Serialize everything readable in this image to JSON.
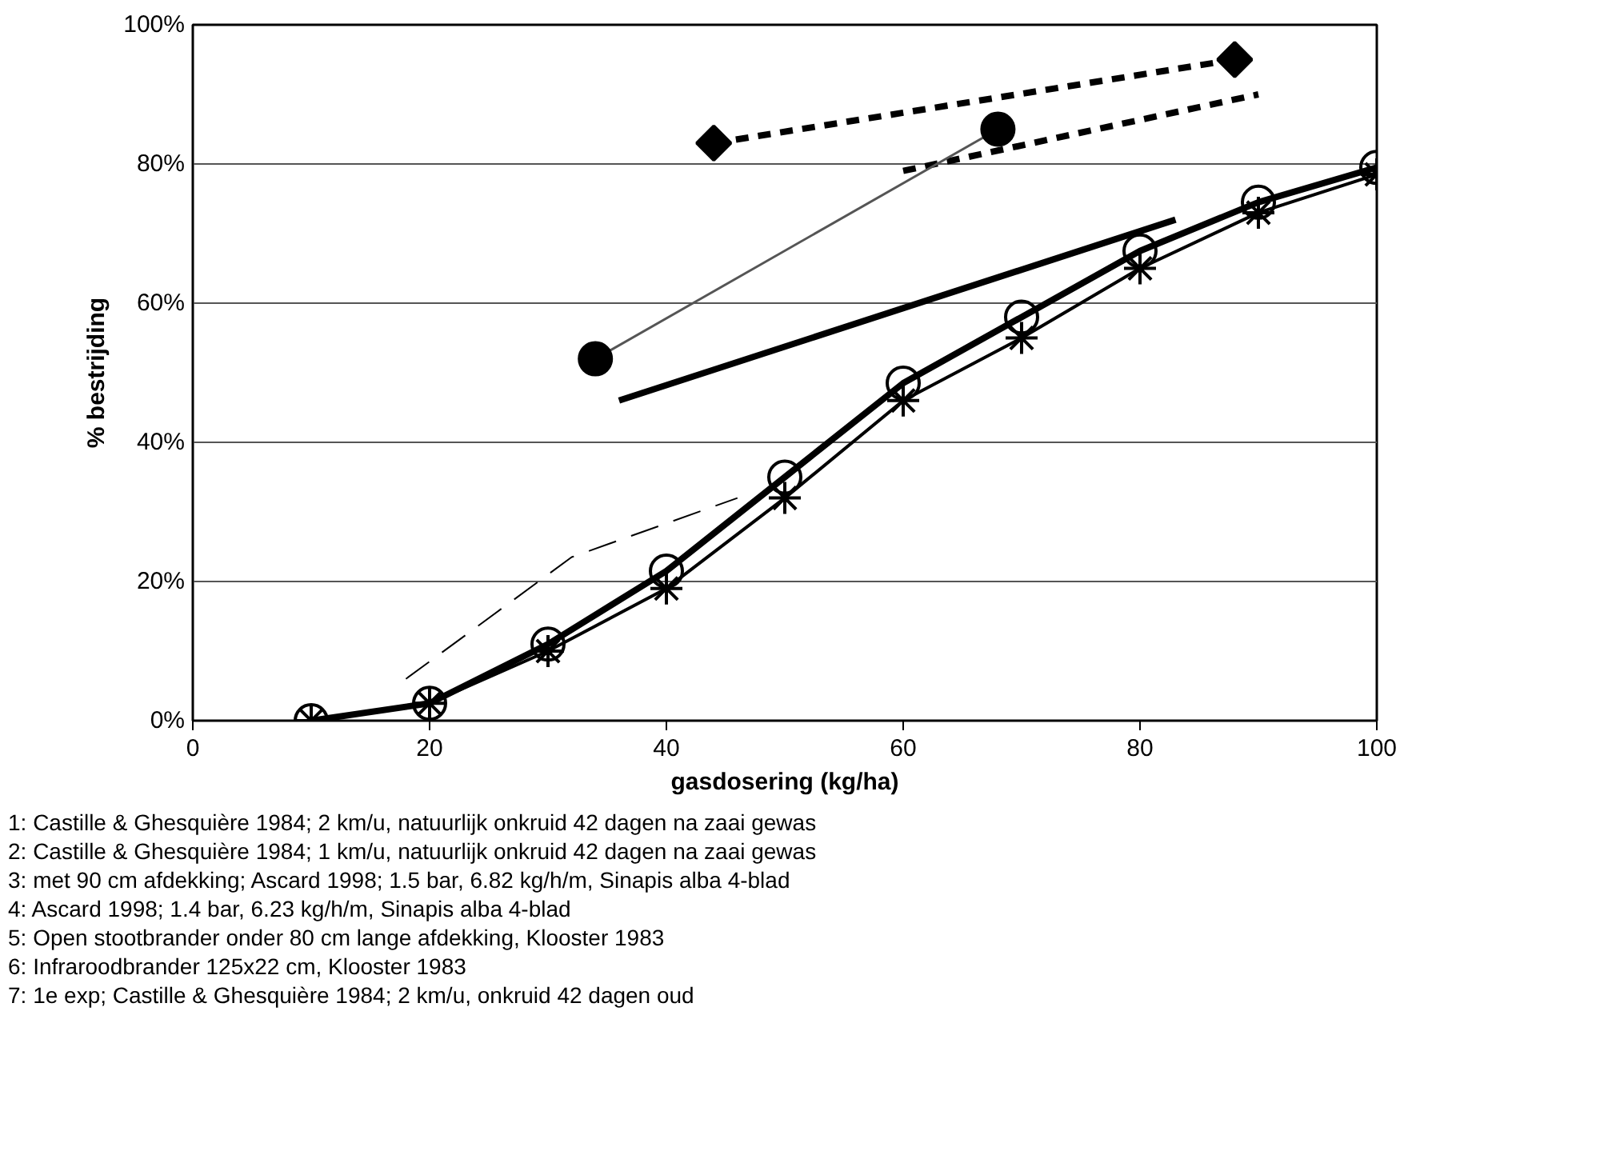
{
  "chart_data": {
    "type": "line",
    "xlabel": "gasdosering (kg/ha)",
    "ylabel": "% bestrijding",
    "xlim": [
      0,
      100
    ],
    "xticks": [
      0,
      20,
      40,
      60,
      80,
      100
    ],
    "ylim": [
      0,
      100
    ],
    "yticks": [
      {
        "value": 0,
        "label": "0%"
      },
      {
        "value": 20,
        "label": "20%"
      },
      {
        "value": 40,
        "label": "40%"
      },
      {
        "value": 60,
        "label": "60%"
      },
      {
        "value": 80,
        "label": "80%"
      },
      {
        "value": 100,
        "label": "100%"
      }
    ],
    "grid": "y",
    "series": [
      {
        "color": "#000000",
        "x": [
          44,
          88
        ],
        "values": [
          83,
          95
        ],
        "marker": "diamond",
        "line_style": "dashed"
      },
      {
        "color": "#000000",
        "x": [
          60,
          90
        ],
        "values": [
          79,
          90
        ],
        "marker": "none",
        "line_style": "dashed"
      },
      {
        "color": "#555555",
        "x": [
          34,
          68
        ],
        "values": [
          52,
          85
        ],
        "marker": "circle",
        "line_style": "solid"
      },
      {
        "color": "#000000",
        "x": [
          36,
          83
        ],
        "values": [
          46,
          72
        ],
        "marker": "none",
        "line_style": "solid"
      },
      {
        "color": "#000000",
        "x": [
          10,
          20,
          30,
          40,
          50,
          60,
          70,
          80,
          90,
          100
        ],
        "values": [
          0,
          2.5,
          11,
          21.5,
          35,
          48.5,
          58,
          67.5,
          74.5,
          79.5
        ],
        "marker": "circle",
        "line_style": "solid"
      },
      {
        "color": "#000000",
        "x": [
          10,
          20,
          30,
          40,
          50,
          60,
          70,
          80,
          90,
          100
        ],
        "values": [
          0,
          2.5,
          10,
          19,
          32,
          46,
          55,
          65,
          73,
          78.5
        ],
        "marker": "cross",
        "line_style": "solid"
      },
      {
        "color": "#000000",
        "x": [
          18,
          32,
          46
        ],
        "values": [
          6,
          23.5,
          32
        ],
        "marker": "none",
        "line_style": "dashed"
      }
    ],
    "annotations": [
      "1: Castille & Ghesquière 1984; 2 km/u, natuurlijk onkruid 42 dagen na zaai gewas",
      "2: Castille & Ghesquière 1984; 1 km/u, natuurlijk onkruid 42 dagen na zaai gewas",
      "3: met 90 cm afdekking; Ascard 1998; 1.5 bar, 6.82 kg/h/m, Sinapis alba 4-blad",
      "4: Ascard 1998; 1.4 bar, 6.23 kg/h/m, Sinapis alba 4-blad",
      "5: Open stootbrander onder 80 cm lange afdekking, Klooster 1983",
      "6: Infraroodbrander 125x22 cm, Klooster 1983",
      "7: 1e exp; Castille & Ghesquière 1984; 2 km/u, onkruid 42 dagen oud"
    ]
  }
}
